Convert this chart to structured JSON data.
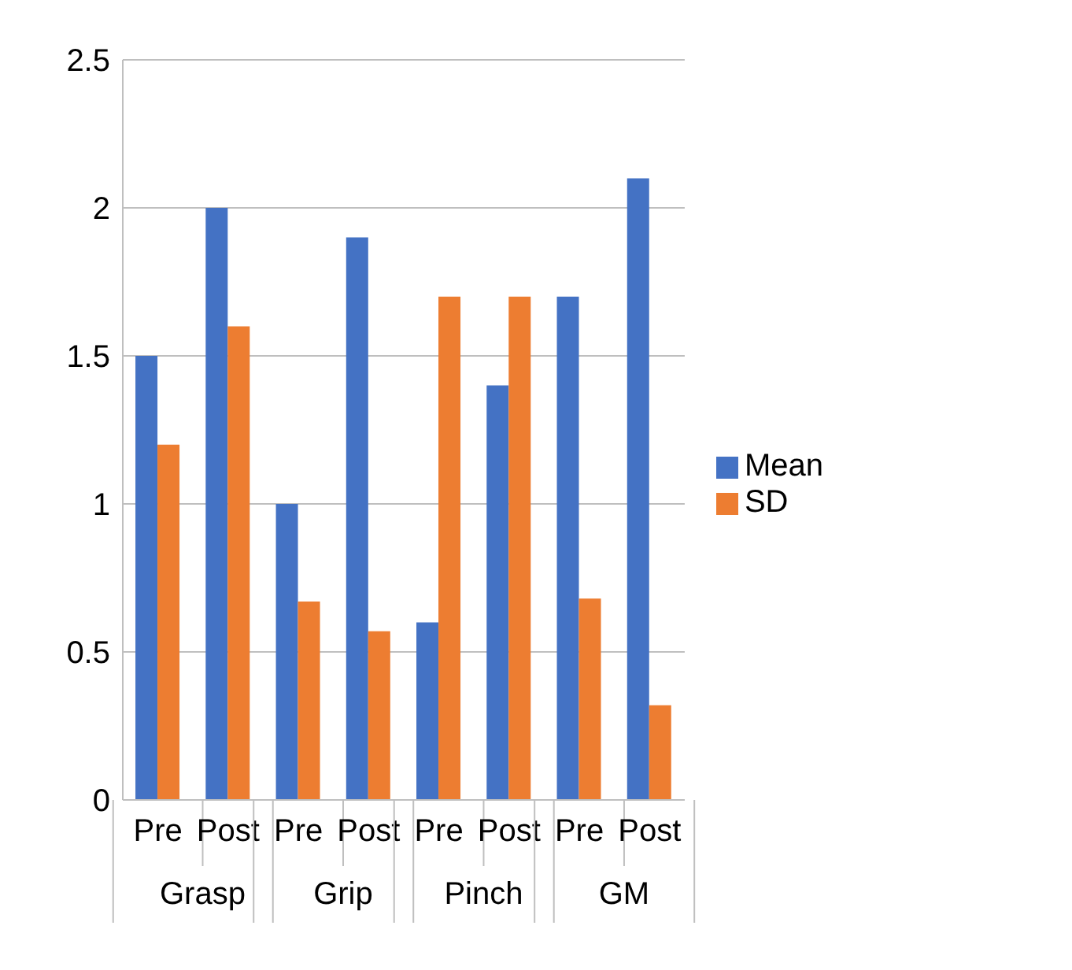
{
  "chart_data": {
    "type": "bar",
    "categories": [
      "Pre",
      "Post",
      "Pre",
      "Post",
      "Pre",
      "Post",
      "Pre",
      "Post"
    ],
    "series": [
      {
        "name": "Mean",
        "color": "#4472c4",
        "values": [
          1.5,
          2.0,
          1.0,
          1.9,
          0.6,
          1.4,
          1.7,
          2.1
        ]
      },
      {
        "name": "SD",
        "color": "#ed7d31",
        "values": [
          1.2,
          1.6,
          0.67,
          0.57,
          1.7,
          1.7,
          0.68,
          0.32
        ]
      }
    ],
    "annotations": [
      "Grasp",
      "Grip",
      "Pinch",
      "GM"
    ],
    "ylim": [
      0,
      2.5
    ],
    "yticks": [
      0,
      0.5,
      1,
      1.5,
      2,
      2.5
    ],
    "grid": "y",
    "legend": "right"
  }
}
